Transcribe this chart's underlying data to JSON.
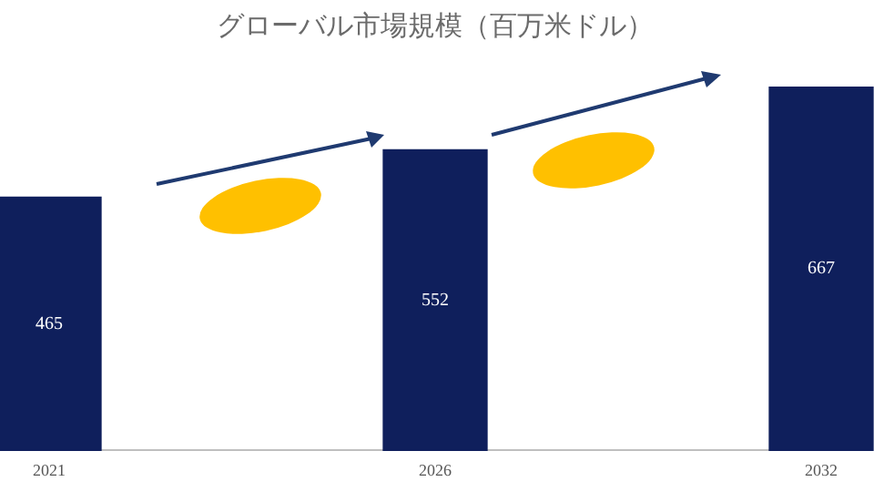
{
  "chart_data": {
    "type": "bar",
    "title": "グローバル市場規模（百万米ドル）",
    "categories": [
      "2021",
      "2026",
      "2032"
    ],
    "values": [
      465,
      552,
      667
    ],
    "color": "#0f1f5c",
    "data_labels": true,
    "grid": false,
    "legend": false,
    "tick_labels": "x"
  }
}
